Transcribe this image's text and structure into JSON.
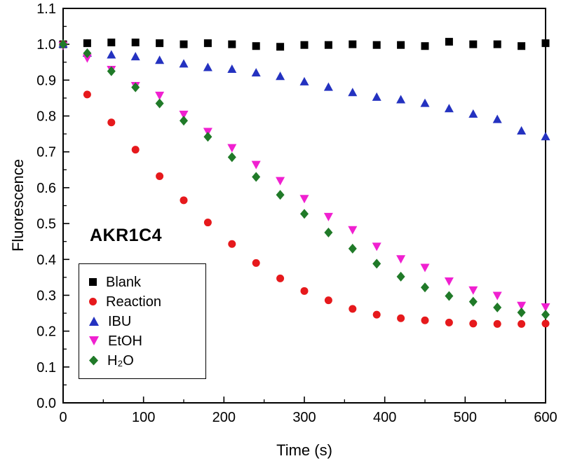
{
  "figure": {
    "annotation": "AKR1C4",
    "background": "#ffffff"
  },
  "chart_data": {
    "type": "scatter",
    "title": "",
    "xlabel": "Time (s)",
    "ylabel": "Fluorescence",
    "xlim": [
      0,
      600
    ],
    "ylim": [
      0.0,
      1.1
    ],
    "x_major_ticks": [
      0,
      100,
      200,
      300,
      400,
      500,
      600
    ],
    "x_minor_step": 50,
    "y_major_ticks": [
      0.0,
      0.1,
      0.2,
      0.3,
      0.4,
      0.5,
      0.6,
      0.7,
      0.8,
      0.9,
      1.0,
      1.1
    ],
    "y_minor_step": 0.05,
    "grid": false,
    "legend_position": "lower-left",
    "x": [
      0,
      30,
      60,
      90,
      120,
      150,
      180,
      210,
      240,
      270,
      300,
      330,
      360,
      390,
      420,
      450,
      480,
      510,
      540,
      570,
      600
    ],
    "series": [
      {
        "name": "Blank",
        "marker": "square",
        "color": "#000000",
        "values": [
          1.0,
          1.003,
          1.005,
          1.005,
          1.003,
          1.0,
          1.003,
          1.0,
          0.995,
          0.993,
          0.998,
          0.998,
          1.0,
          0.998,
          0.998,
          0.995,
          1.007,
          1.0,
          1.0,
          0.995,
          1.003
        ]
      },
      {
        "name": "Reaction",
        "marker": "circle",
        "color": "#e6191c",
        "values": [
          1.0,
          0.86,
          0.782,
          0.706,
          0.632,
          0.565,
          0.503,
          0.443,
          0.39,
          0.347,
          0.312,
          0.286,
          0.262,
          0.246,
          0.236,
          0.23,
          0.224,
          0.221,
          0.22,
          0.22,
          0.221
        ]
      },
      {
        "name": "IBU",
        "marker": "triangle-up",
        "color": "#2432c0",
        "values": [
          1.0,
          0.975,
          0.97,
          0.965,
          0.955,
          0.945,
          0.935,
          0.93,
          0.92,
          0.91,
          0.895,
          0.88,
          0.865,
          0.852,
          0.845,
          0.835,
          0.82,
          0.805,
          0.79,
          0.758,
          0.742
        ]
      },
      {
        "name": "EtOH",
        "marker": "triangle-down",
        "color": "#f020d0",
        "values": [
          0.997,
          0.962,
          0.93,
          0.885,
          0.858,
          0.805,
          0.757,
          0.712,
          0.665,
          0.62,
          0.57,
          0.52,
          0.483,
          0.437,
          0.402,
          0.378,
          0.34,
          0.315,
          0.3,
          0.272,
          0.268
        ]
      },
      {
        "name": "H₂O",
        "marker": "diamond",
        "color": "#207a28",
        "values": [
          1.0,
          0.975,
          0.925,
          0.88,
          0.835,
          0.787,
          0.742,
          0.685,
          0.63,
          0.58,
          0.527,
          0.475,
          0.43,
          0.388,
          0.352,
          0.322,
          0.298,
          0.282,
          0.266,
          0.252,
          0.246
        ]
      }
    ]
  }
}
